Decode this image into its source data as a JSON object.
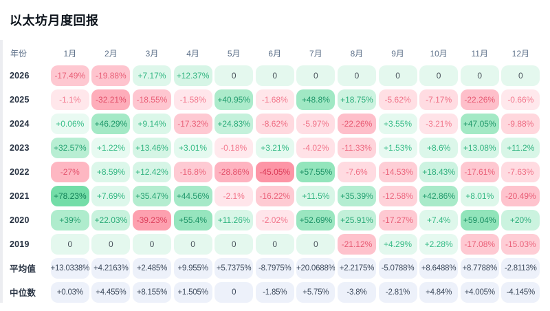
{
  "chart_data": {
    "type": "heatmap",
    "title": "以太坊月度回报",
    "row_header": "年份",
    "columns": [
      "1月",
      "2月",
      "3月",
      "4月",
      "5月",
      "6月",
      "7月",
      "8月",
      "9月",
      "10月",
      "11月",
      "12月"
    ],
    "rows": [
      {
        "label": "2026",
        "values": [
          "-17.49%",
          "-19.88%",
          "+7.17%",
          "+12.37%",
          "0",
          "0",
          "0",
          "0",
          "0",
          "0",
          "0",
          "0"
        ]
      },
      {
        "label": "2025",
        "values": [
          "-1.1%",
          "-32.21%",
          "-18.55%",
          "-1.58%",
          "+40.95%",
          "-1.68%",
          "+48.8%",
          "+18.75%",
          "-5.62%",
          "-7.17%",
          "-22.26%",
          "-0.66%"
        ]
      },
      {
        "label": "2024",
        "values": [
          "+0.06%",
          "+46.29%",
          "+9.14%",
          "-17.32%",
          "+24.83%",
          "-8.62%",
          "-5.97%",
          "-22.26%",
          "+3.55%",
          "-3.21%",
          "+47.05%",
          "-9.88%"
        ]
      },
      {
        "label": "2023",
        "values": [
          "+32.57%",
          "+1.22%",
          "+13.46%",
          "+3.01%",
          "-0.18%",
          "+3.21%",
          "-4.02%",
          "-11.33%",
          "+1.53%",
          "+8.6%",
          "+13.08%",
          "+11.2%"
        ]
      },
      {
        "label": "2022",
        "values": [
          "-27%",
          "+8.59%",
          "+12.42%",
          "-16.8%",
          "-28.86%",
          "-45.05%",
          "+57.55%",
          "-7.6%",
          "-14.53%",
          "+18.43%",
          "-17.61%",
          "-7.63%"
        ]
      },
      {
        "label": "2021",
        "values": [
          "+78.23%",
          "+7.69%",
          "+35.47%",
          "+44.56%",
          "-2.1%",
          "-16.22%",
          "+11.5%",
          "+35.39%",
          "-12.58%",
          "+42.86%",
          "+8.01%",
          "-20.49%"
        ]
      },
      {
        "label": "2020",
        "values": [
          "+39%",
          "+22.03%",
          "-39.23%",
          "+55.4%",
          "+11.26%",
          "-2.02%",
          "+52.69%",
          "+25.91%",
          "-17.27%",
          "+7.4%",
          "+59.04%",
          "+20%"
        ]
      },
      {
        "label": "2019",
        "values": [
          "0",
          "0",
          "0",
          "0",
          "0",
          "0",
          "0",
          "-21.12%",
          "+4.29%",
          "+2.28%",
          "-17.08%",
          "-15.03%"
        ]
      }
    ],
    "summary_rows": [
      {
        "label": "平均值",
        "values": [
          "+13.0338%",
          "+4.2163%",
          "+2.485%",
          "+9.955%",
          "+5.7375%",
          "-8.7975%",
          "+20.0688%",
          "+2.2175%",
          "-5.0788%",
          "+8.6488%",
          "+8.7788%",
          "-2.8113%"
        ]
      },
      {
        "label": "中位数",
        "values": [
          "+0.03%",
          "+4.455%",
          "+8.155%",
          "+1.505%",
          "0",
          "-1.85%",
          "+5.75%",
          "-3.8%",
          "-2.81%",
          "+4.84%",
          "+4.005%",
          "-4.145%"
        ]
      }
    ]
  },
  "colors": {
    "positive_bg_light": "#e9faf2",
    "positive_bg_strong": "#74dda8",
    "positive_text_light": "#36bd87",
    "positive_text_strong": "#118057",
    "negative_bg_light": "#ffe9ed",
    "negative_bg_strong": "#fd95a6",
    "negative_text_light": "#f3798e",
    "negative_text_strong": "#da3a57",
    "zero_bg": "#e4f8ee",
    "zero_text": "#49525b",
    "summary_bg": "#edf1fa",
    "summary_text": "#3d4a5c"
  }
}
